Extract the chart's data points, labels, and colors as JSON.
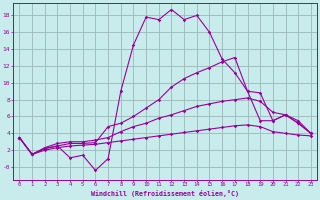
{
  "xlabel": "Windchill (Refroidissement éolien,°C)",
  "bg_color": "#c8ecec",
  "grid_color": "#9ab8b8",
  "line_color": "#990099",
  "xlim": [
    -0.5,
    23.5
  ],
  "ylim": [
    -1.5,
    19.5
  ],
  "xticks": [
    0,
    1,
    2,
    3,
    4,
    5,
    6,
    7,
    8,
    9,
    10,
    11,
    12,
    13,
    14,
    15,
    16,
    17,
    18,
    19,
    20,
    21,
    22,
    23
  ],
  "yticks": [
    0,
    2,
    4,
    6,
    8,
    10,
    12,
    14,
    16,
    18
  ],
  "ytick_labels": [
    "-0",
    "2",
    "4",
    "6",
    "8",
    "10",
    "12",
    "14",
    "16",
    "18"
  ],
  "curve1_x": [
    0,
    1,
    2,
    3,
    4,
    5,
    6,
    7,
    8,
    9,
    10,
    11,
    12,
    13,
    14,
    15,
    16,
    17,
    18,
    19,
    20,
    21,
    22,
    23
  ],
  "curve1_y": [
    3.5,
    1.5,
    2.2,
    2.5,
    1.1,
    1.4,
    -0.4,
    1.0,
    9.0,
    14.5,
    17.8,
    17.5,
    18.7,
    17.5,
    18.0,
    16.0,
    12.8,
    11.2,
    9.0,
    5.5,
    5.5,
    6.2,
    5.2,
    4.0
  ],
  "curve2_x": [
    0,
    1,
    2,
    3,
    4,
    5,
    6,
    7,
    8,
    9,
    10,
    11,
    12,
    13,
    14,
    15,
    16,
    17,
    18,
    19,
    20,
    21,
    22,
    23
  ],
  "curve2_y": [
    3.5,
    1.5,
    2.2,
    2.5,
    2.8,
    2.8,
    2.9,
    4.8,
    5.2,
    6.0,
    7.0,
    8.0,
    9.5,
    10.5,
    11.2,
    11.8,
    12.5,
    13.0,
    9.0,
    8.8,
    5.5,
    6.2,
    5.2,
    4.0
  ],
  "curve3_x": [
    0,
    1,
    2,
    3,
    4,
    5,
    6,
    7,
    8,
    9,
    10,
    11,
    12,
    13,
    14,
    15,
    16,
    17,
    18,
    19,
    20,
    21,
    22,
    23
  ],
  "curve3_y": [
    3.5,
    1.5,
    2.3,
    2.8,
    3.0,
    3.0,
    3.2,
    3.5,
    4.2,
    4.8,
    5.2,
    5.8,
    6.2,
    6.7,
    7.2,
    7.5,
    7.8,
    8.0,
    8.2,
    7.8,
    6.5,
    6.2,
    5.5,
    4.0
  ],
  "curve4_x": [
    0,
    1,
    2,
    3,
    4,
    5,
    6,
    7,
    8,
    9,
    10,
    11,
    12,
    13,
    14,
    15,
    16,
    17,
    18,
    19,
    20,
    21,
    22,
    23
  ],
  "curve4_y": [
    3.5,
    1.5,
    2.0,
    2.3,
    2.5,
    2.6,
    2.7,
    2.9,
    3.1,
    3.3,
    3.5,
    3.7,
    3.9,
    4.1,
    4.3,
    4.5,
    4.7,
    4.9,
    5.0,
    4.8,
    4.2,
    4.0,
    3.8,
    3.7
  ]
}
